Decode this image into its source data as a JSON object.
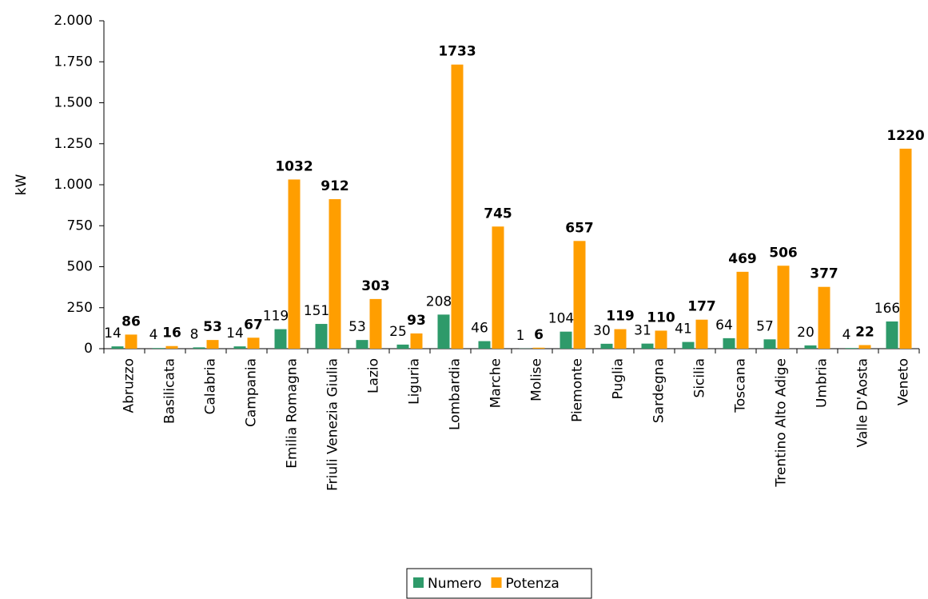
{
  "chart_data": {
    "type": "bar",
    "y_label": "kW",
    "categories": [
      "Abruzzo",
      "Basilicata",
      "Calabria",
      "Campania",
      "Emilia Romagna",
      "Friuli Venezia Giulia",
      "Lazio",
      "Liguria",
      "Lombardia",
      "Marche",
      "Molise",
      "Piemonte",
      "Puglia",
      "Sardegna",
      "Sicilia",
      "Toscana",
      "Trentino Alto Adige",
      "Umbria",
      "Valle D'Aosta",
      "Veneto"
    ],
    "series": [
      {
        "name": "Numero",
        "color": "#2e9a6a",
        "values": [
          14,
          4,
          8,
          14,
          119,
          151,
          53,
          25,
          208,
          46,
          1,
          104,
          30,
          31,
          41,
          64,
          57,
          20,
          4,
          166
        ]
      },
      {
        "name": "Potenza",
        "color": "#ff9e00",
        "values": [
          86,
          16,
          53,
          67,
          1032,
          912,
          303,
          93,
          1733,
          745,
          6,
          657,
          119,
          110,
          177,
          469,
          506,
          377,
          22,
          1220
        ]
      }
    ],
    "ylim": [
      0,
      2000
    ],
    "yticks": [
      0,
      250,
      500,
      750,
      {
        "value": 1000,
        "label": "1.000"
      },
      {
        "value": 1250,
        "label": "1.250"
      },
      {
        "value": 1500,
        "label": "1.500"
      },
      {
        "value": 1750,
        "label": "1.750"
      },
      {
        "value": 2000,
        "label": "2.000"
      }
    ],
    "legend": "bottom"
  }
}
